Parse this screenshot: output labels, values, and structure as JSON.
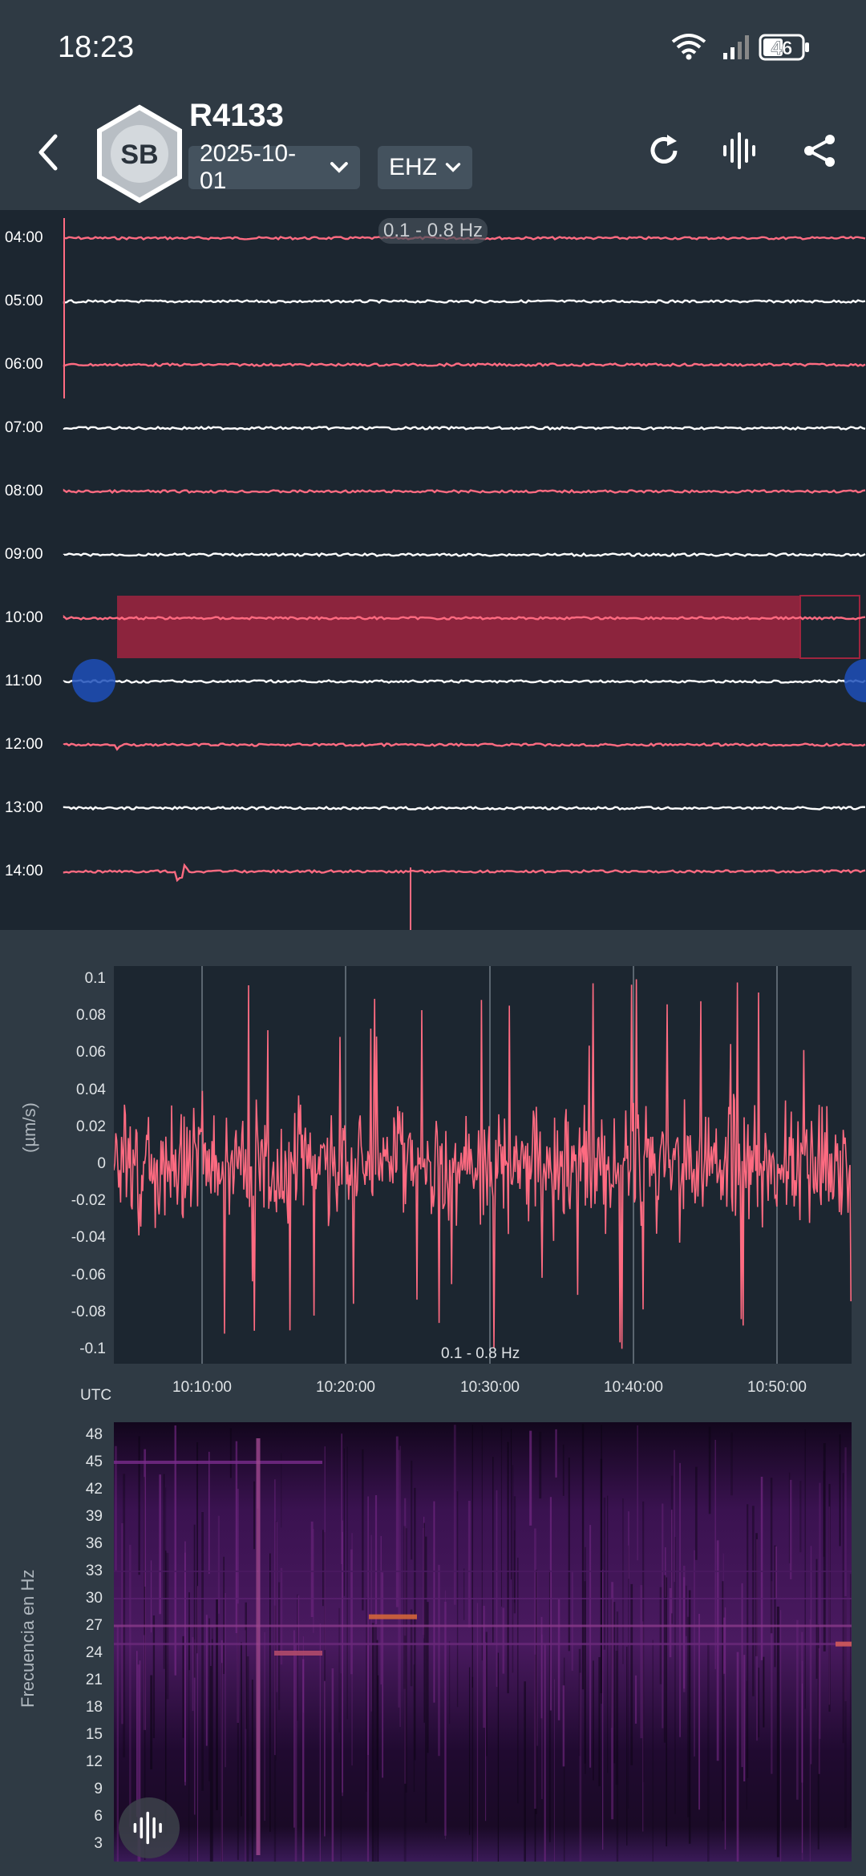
{
  "status_bar": {
    "time": "18:23",
    "battery": "46"
  },
  "header": {
    "badge": "SB",
    "station": "R4133",
    "date": "2025-10-01",
    "channel": "EHZ"
  },
  "helicorder": {
    "filter": "0.1 - 0.8 Hz",
    "hours": [
      "04:00",
      "05:00",
      "06:00",
      "07:00",
      "08:00",
      "09:00",
      "10:00",
      "11:00",
      "12:00",
      "13:00",
      "14:00"
    ],
    "trace_colors": [
      "#ff6b81",
      "#ffffff"
    ],
    "selection_color": "#a0253f"
  },
  "detail_plot": {
    "ylabel": "(µm/s)",
    "yticks": [
      "0.1",
      "0.08",
      "0.06",
      "0.04",
      "0.02",
      "0",
      "-0.02",
      "-0.04",
      "-0.06",
      "-0.08",
      "-0.1"
    ],
    "xticks": [
      "10:10:00",
      "10:20:00",
      "10:30:00",
      "10:40:00",
      "10:50:00"
    ],
    "x_unit": "UTC",
    "filter": "0.1 - 0.8 Hz",
    "series_color": "#ff6b81"
  },
  "chart_data": {
    "type": "line",
    "x_unit": "UTC",
    "ylabel": "(µm/s)",
    "ylim": [
      -0.1,
      0.1
    ],
    "xlim": [
      "10:03:00",
      "10:55:00"
    ],
    "series": [
      {
        "values": "continuous noise, amplitude mostly within ±0.04, peaks to ±0.1"
      }
    ]
  },
  "spectrogram": {
    "ylabel": "Frecuencia en Hz",
    "yticks": [
      "48",
      "45",
      "42",
      "39",
      "36",
      "33",
      "30",
      "27",
      "24",
      "21",
      "18",
      "15",
      "12",
      "9",
      "6",
      "3"
    ]
  },
  "icons": {
    "back": "chevron-left-icon",
    "refresh": "refresh-icon",
    "waveform": "waveform-icon",
    "share": "share-icon"
  }
}
